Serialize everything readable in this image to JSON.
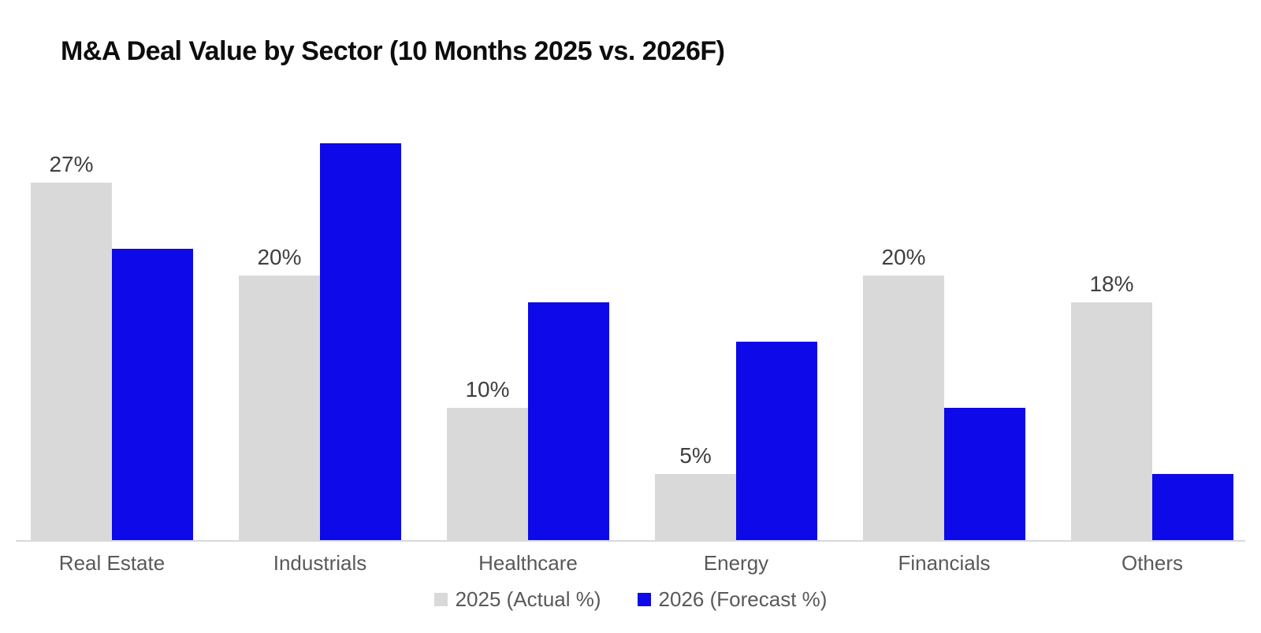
{
  "title": "M&A Deal Value by Sector (10 Months 2025 vs. 2026F)",
  "colors": {
    "actual_bar": "#D9D9D9",
    "forecast_bar": "#0D09E8",
    "title_text": "#0D0D0D",
    "value_label_text": "#3F3F3F",
    "axis_text": "#595959",
    "axis_line": "#D9D9D9",
    "background": "#FFFFFF"
  },
  "legend": {
    "actual_label": "2025 (Actual %)",
    "forecast_label": "2026 (Forecast %)"
  },
  "chart_data": {
    "type": "bar",
    "title": "M&A Deal Value by Sector (10 Months 2025 vs. 2026F)",
    "categories": [
      "Real Estate",
      "Industrials",
      "Healthcare",
      "Energy",
      "Financials",
      "Others"
    ],
    "series": [
      {
        "name": "2025 (Actual %)",
        "values": [
          27,
          20,
          10,
          5,
          20,
          18
        ],
        "color": "#D9D9D9",
        "data_labels": true
      },
      {
        "name": "2026 (Forecast %)",
        "values": [
          22,
          30,
          18,
          15,
          10,
          5
        ],
        "color": "#0D09E8",
        "data_labels": false
      }
    ],
    "data_label_values": [
      "27%",
      "20%",
      "10%",
      "5%",
      "20%",
      "18%"
    ],
    "value_label_format": "{v}%",
    "xlabel": "",
    "ylabel": "",
    "ylim": [
      0,
      31
    ],
    "grid": false,
    "y_axis_shown": false,
    "legend_position": "bottom"
  }
}
